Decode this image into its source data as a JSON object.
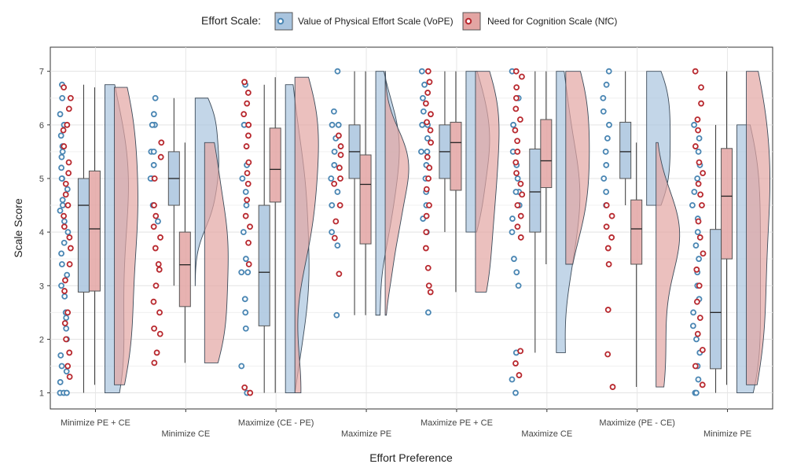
{
  "legend": {
    "title": "Effort Scale:",
    "items": [
      {
        "label": "Value of Physical Effort Scale (VoPE)",
        "color": "#4a86b3",
        "fill": "#a9c4de"
      },
      {
        "label": "Need for Cognition Scale (NfC)",
        "color": "#b8292f",
        "fill": "#e3a5a3"
      }
    ]
  },
  "chart_data": {
    "type": "box",
    "xlabel": "Effort Preference",
    "ylabel": "Scale Score",
    "ylim": [
      1,
      7
    ],
    "yticks": [
      "1",
      "2",
      "3",
      "4",
      "5",
      "6",
      "7"
    ],
    "grid": true,
    "legend_position": "top",
    "categories": [
      "Minimize PE + CE",
      "Minimize CE",
      "Maximize (CE - PE)",
      "Maximize PE",
      "Maximize PE + CE",
      "Maximize CE",
      "Maximize (PE - CE)",
      "Minimize PE"
    ],
    "series": [
      {
        "name": "Value of Physical Effort Scale (VoPE)",
        "boxes": [
          {
            "min": 1.0,
            "q1": 2.88,
            "median": 4.5,
            "q3": 5.0,
            "max": 6.75
          },
          {
            "min": 3.0,
            "q1": 4.5,
            "median": 5.0,
            "q3": 5.5,
            "max": 6.5
          },
          {
            "min": 1.0,
            "q1": 2.25,
            "median": 3.25,
            "q3": 4.5,
            "max": 6.75
          },
          {
            "min": 2.45,
            "q1": 5.0,
            "median": 5.5,
            "q3": 6.0,
            "max": 7.0
          },
          {
            "min": 4.0,
            "q1": 5.0,
            "median": 5.5,
            "q3": 6.0,
            "max": 7.0
          },
          {
            "min": 1.75,
            "q1": 4.0,
            "median": 4.75,
            "q3": 5.55,
            "max": 7.0
          },
          {
            "min": 4.5,
            "q1": 5.0,
            "median": 5.5,
            "q3": 6.05,
            "max": 7.0
          },
          {
            "min": 1.0,
            "q1": 1.45,
            "median": 2.5,
            "q3": 4.05,
            "max": 6.0
          }
        ],
        "points": [
          [
            1,
            1,
            1,
            1.2,
            1.4,
            1.5,
            1.7,
            2.0,
            2.2,
            2.4,
            2.5,
            2.8,
            3.0,
            3.2,
            3.4,
            3.6,
            3.8,
            4.0,
            4.2,
            4.4,
            4.5,
            4.6,
            4.8,
            5.0,
            5.0,
            5.2,
            5.4,
            5.5,
            5.6,
            5.8,
            6.0,
            6.2,
            6.5,
            6.75
          ],
          [
            4.5,
            4.5,
            5.0,
            5.0,
            5.25,
            5.5,
            5.5,
            6.0,
            6.0,
            6.2,
            6.5,
            4.2
          ],
          [
            1.0,
            1.5,
            2.2,
            2.5,
            2.75,
            3.25,
            3.25,
            3.5,
            4.0,
            4.5,
            4.75,
            5.0,
            5.25,
            6.0,
            6.75
          ],
          [
            2.45,
            3.75,
            4.0,
            4.5,
            4.75,
            5.0,
            5.25,
            5.5,
            5.75,
            6.0,
            6.0,
            6.25,
            7.0
          ],
          [
            2.5,
            4.0,
            4.25,
            4.5,
            4.75,
            5.0,
            5.25,
            5.5,
            5.5,
            5.75,
            6.0,
            6.0,
            6.25,
            6.5,
            6.75,
            7.0
          ],
          [
            1.0,
            1.25,
            1.75,
            3.0,
            3.25,
            3.5,
            4.0,
            4.25,
            4.5,
            4.75,
            4.75,
            5.0,
            5.25,
            5.5,
            6.0,
            6.5,
            7.0
          ],
          [
            4.5,
            4.75,
            5.0,
            5.25,
            5.5,
            5.75,
            6.0,
            6.25,
            6.5,
            6.75,
            7.0
          ],
          [
            1.0,
            1.0,
            1.25,
            1.5,
            1.75,
            2.0,
            2.25,
            2.5,
            2.75,
            3.0,
            3.25,
            3.5,
            3.75,
            4.0,
            4.25,
            4.5,
            4.75,
            5.0,
            5.25,
            5.5,
            5.75,
            6.0
          ]
        ]
      },
      {
        "name": "Need for Cognition Scale (NfC)",
        "boxes": [
          {
            "min": 1.15,
            "q1": 2.9,
            "median": 4.06,
            "q3": 5.14,
            "max": 6.7
          },
          {
            "min": 1.56,
            "q1": 2.61,
            "median": 3.39,
            "q3": 4.0,
            "max": 5.67
          },
          {
            "min": 1.0,
            "q1": 4.56,
            "median": 5.17,
            "q3": 5.94,
            "max": 6.89
          },
          {
            "min": 2.45,
            "q1": 3.78,
            "median": 4.89,
            "q3": 5.44,
            "max": 7.0
          },
          {
            "min": 2.88,
            "q1": 4.78,
            "median": 5.67,
            "q3": 6.05,
            "max": 7.0
          },
          {
            "min": 3.4,
            "q1": 4.83,
            "median": 5.33,
            "q3": 6.1,
            "max": 7.0
          },
          {
            "min": 1.11,
            "q1": 3.4,
            "median": 4.06,
            "q3": 4.6,
            "max": 5.67
          },
          {
            "min": 1.15,
            "q1": 3.5,
            "median": 4.67,
            "q3": 5.56,
            "max": 7.0
          }
        ],
        "points": [
          [
            1.3,
            1.5,
            1.75,
            2.0,
            2.3,
            2.5,
            2.9,
            3.1,
            3.4,
            3.7,
            3.9,
            4.1,
            4.3,
            4.5,
            4.7,
            4.9,
            5.1,
            5.3,
            5.6,
            5.9,
            6.0,
            6.3,
            6.5,
            6.7
          ],
          [
            1.56,
            1.75,
            2.1,
            2.2,
            2.5,
            2.7,
            3.0,
            3.3,
            3.4,
            3.7,
            3.9,
            4.1,
            4.3,
            4.5,
            5.0,
            5.4,
            5.67
          ],
          [
            1.0,
            1.1,
            3.4,
            3.8,
            4.1,
            4.3,
            4.6,
            4.9,
            5.1,
            5.3,
            5.6,
            5.8,
            6.0,
            6.2,
            6.4,
            6.6,
            6.8
          ],
          [
            3.22,
            3.89,
            4.2,
            4.5,
            4.9,
            5.0,
            5.2,
            5.44,
            5.6,
            5.8
          ],
          [
            2.88,
            3.0,
            3.33,
            3.7,
            4.0,
            4.3,
            4.5,
            4.8,
            5.0,
            5.2,
            5.4,
            5.67,
            5.9,
            6.05,
            6.2,
            6.4,
            6.6,
            6.8,
            7.0
          ],
          [
            1.33,
            1.55,
            1.78,
            3.9,
            4.1,
            4.3,
            4.5,
            4.7,
            4.9,
            5.1,
            5.3,
            5.5,
            5.7,
            5.9,
            6.1,
            6.3,
            6.5,
            6.7,
            6.9,
            7.0
          ],
          [
            1.11,
            1.72,
            2.55,
            3.4,
            3.7,
            3.9,
            4.1,
            4.3,
            4.5
          ],
          [
            1.15,
            1.5,
            1.8,
            2.1,
            2.4,
            2.7,
            3.0,
            3.3,
            3.6,
            3.9,
            4.2,
            4.5,
            4.7,
            4.9,
            5.1,
            5.3,
            5.6,
            5.9,
            6.1,
            6.4,
            6.7,
            7.0
          ]
        ]
      }
    ]
  }
}
